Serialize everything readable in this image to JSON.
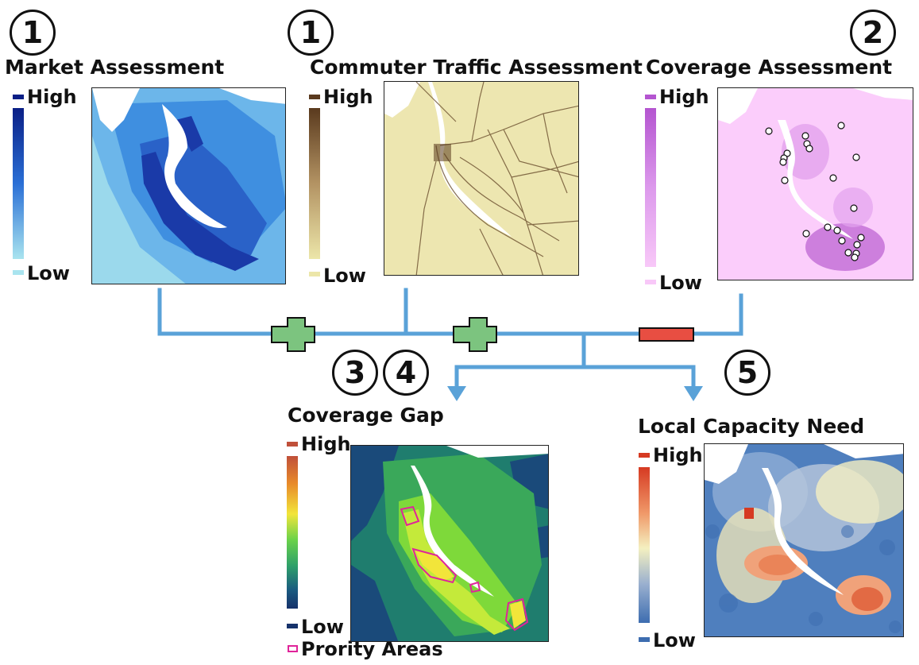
{
  "panels": {
    "market": {
      "step": "1",
      "title": "Market Assessment",
      "legend_high": "High",
      "legend_low": "Low",
      "colors": {
        "high": "#0a1f86",
        "low": "#a9e4ef"
      }
    },
    "commuter": {
      "step": "1",
      "title": "Commuter Traffic Assessment",
      "legend_high": "High",
      "legend_low": "Low",
      "colors": {
        "high": "#5a3a1e",
        "low": "#ece6a9"
      }
    },
    "coverage": {
      "step": "2",
      "title": "Coverage Assessment",
      "legend_high": "High",
      "legend_low": "Low",
      "colors": {
        "high": "#b455d0",
        "low": "#f8c8f8"
      }
    },
    "gap": {
      "steps": [
        "3",
        "4"
      ],
      "title": "Coverage Gap",
      "legend_high": "High",
      "legend_low": "Low",
      "priority_label": "Prority Areas",
      "colors": {
        "high": "#c0503a",
        "low": "#16326b",
        "priority": "#e0249a"
      }
    },
    "capacity": {
      "step": "5",
      "title": "Local Capacity Need",
      "legend_high": "High",
      "legend_low": "Low",
      "colors": {
        "high": "#d63a22",
        "low": "#3d6db0"
      }
    }
  },
  "operators": {
    "plus_1": "plus",
    "plus_2": "plus",
    "minus": "minus"
  },
  "colors": {
    "connector": "#5aa2d8",
    "plus": "#7cc47f",
    "minus": "#e84e42"
  }
}
